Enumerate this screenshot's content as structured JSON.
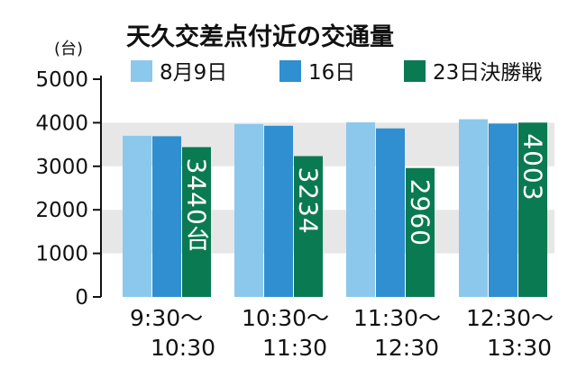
{
  "chart_data": {
    "type": "bar",
    "title": "天久交差点付近の交通量",
    "ylabel": "(台)",
    "xlabel": "",
    "ylim": [
      0,
      5000
    ],
    "yticks": [
      0,
      1000,
      2000,
      3000,
      4000,
      5000
    ],
    "ytick_labels": [
      "0",
      "1000",
      "2000",
      "3000",
      "4000",
      "5000"
    ],
    "categories": [
      {
        "line1": "9:30〜",
        "line2": "10:30"
      },
      {
        "line1": "10:30〜",
        "line2": "11:30"
      },
      {
        "line1": "11:30〜",
        "line2": "12:30"
      },
      {
        "line1": "12:30〜",
        "line2": "13:30"
      }
    ],
    "series": [
      {
        "name": "8月9日",
        "color": "#8cc8ec",
        "values": [
          3700,
          3970,
          4010,
          4080
        ]
      },
      {
        "name": "16日",
        "color": "#2f8fd0",
        "values": [
          3690,
          3930,
          3870,
          3980
        ]
      },
      {
        "name": "23日決勝戦",
        "color": "#0a7a52",
        "values": [
          3440,
          3234,
          2960,
          4003
        ]
      }
    ],
    "bar_labels": [
      "3440台",
      "3234",
      "2960",
      "4003"
    ],
    "grid_band_color": "#e7e7e7",
    "legend_position": "top"
  }
}
